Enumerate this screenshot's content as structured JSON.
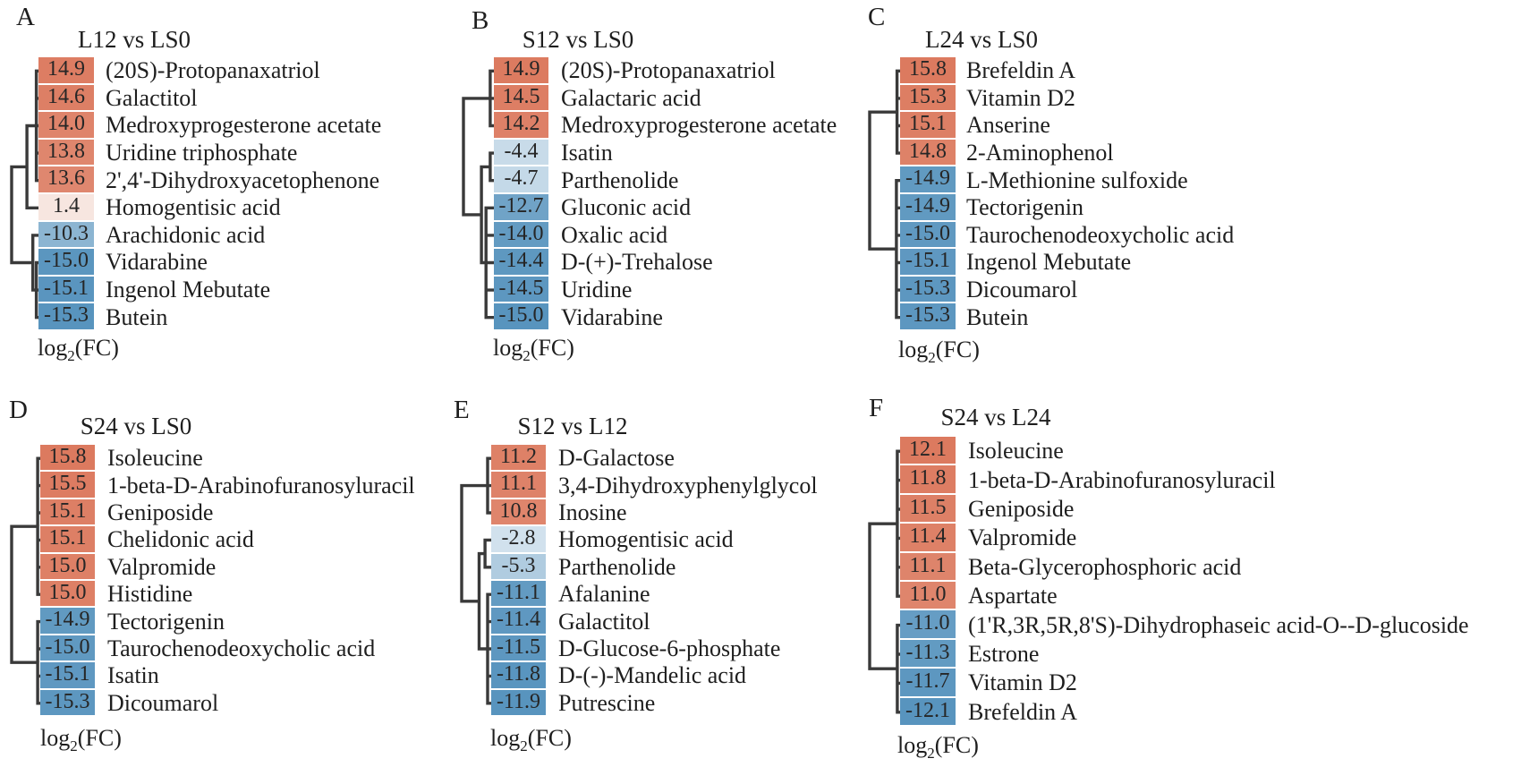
{
  "figure": {
    "background": "#ffffff",
    "value_label": "log2(FC)",
    "value_label_parts": {
      "base": "log",
      "sub": "2",
      "rest": "(FC)"
    },
    "colors": {
      "positive_end": "#dc7a5f",
      "positive_zero": "#faf1ed",
      "negative_end": "#5894be",
      "negative_zero": "#f6f9fb",
      "dendrogram": "#3a3a3a",
      "text": "#1e1e1e",
      "background": "#ffffff"
    }
  },
  "chart_data": [
    {
      "panel_label": "A",
      "title": "L12 vs LS0",
      "type": "heatmap",
      "value_label": "log2(FC)",
      "categories": [
        "(20S)-Protopanaxatriol",
        "Galactitol",
        "Medroxyprogesterone acetate",
        "Uridine triphosphate",
        "2',4'-Dihydroxyacetophenone",
        "Homogentisic acid",
        "Arachidonic acid",
        "Vidarabine",
        "Ingenol Mebutate",
        "Butein"
      ],
      "values": [
        14.9,
        14.6,
        14.0,
        13.8,
        13.6,
        1.4,
        -10.3,
        -15.0,
        -15.1,
        -15.3
      ],
      "dendrogram": {
        "h": 1.0,
        "children": [
          {
            "h": 0.43,
            "children": [
              {
                "h": 0.08,
                "children": [
                  0,
                  1,
                  2,
                  3,
                  4
                ]
              },
              5
            ]
          },
          {
            "h": 0.21,
            "children": [
              6,
              {
                "h": 0.08,
                "children": [
                  7,
                  8,
                  9
                ]
              }
            ]
          }
        ]
      }
    },
    {
      "panel_label": "B",
      "title": "S12 vs LS0",
      "type": "heatmap",
      "value_label": "log2(FC)",
      "categories": [
        "(20S)-Protopanaxatriol",
        "Galactaric acid",
        "Medroxyprogesterone acetate",
        "Isatin",
        "Parthenolide",
        "Gluconic acid",
        "Oxalic acid",
        "D-(+)-Trehalose",
        "Uridine",
        "Vidarabine"
      ],
      "values": [
        14.9,
        14.5,
        14.2,
        -4.4,
        -4.7,
        -12.7,
        -14.0,
        -14.4,
        -14.5,
        -15.0
      ],
      "dendrogram": {
        "h": 1.0,
        "children": [
          {
            "h": 0.12,
            "children": [
              0,
              1,
              2
            ]
          },
          {
            "h": 0.41,
            "children": [
              {
                "h": 0.12,
                "children": [
                  3,
                  4
                ]
              },
              {
                "h": 0.26,
                "children": [
                  5,
                  6,
                  7,
                  8,
                  9
                ]
              }
            ]
          }
        ]
      }
    },
    {
      "panel_label": "C",
      "title": "L24 vs LS0",
      "type": "heatmap",
      "value_label": "log2(FC)",
      "categories": [
        "Brefeldin A",
        "Vitamin D2",
        "Anserine",
        "2-Aminophenol",
        "L-Methionine sulfoxide",
        "Tectorigenin",
        "Taurochenodeoxycholic acid",
        "Ingenol Mebutate",
        "Dicoumarol",
        "Butein"
      ],
      "values": [
        15.8,
        15.3,
        15.1,
        14.8,
        -14.9,
        -14.9,
        -15.0,
        -15.1,
        -15.3,
        -15.3
      ],
      "dendrogram": {
        "h": 1.0,
        "children": [
          {
            "h": 0.1,
            "children": [
              0,
              1,
              2,
              3
            ]
          },
          {
            "h": 0.12,
            "children": [
              4,
              5,
              6,
              7,
              8,
              9
            ]
          }
        ]
      }
    },
    {
      "panel_label": "D",
      "title": "S24 vs LS0",
      "type": "heatmap",
      "value_label": "log2(FC)",
      "categories": [
        "Isoleucine",
        "1-beta-D-Arabinofuranosyluracil",
        "Geniposide",
        "Chelidonic acid",
        "Valpromide",
        "Histidine",
        "Tectorigenin",
        "Taurochenodeoxycholic acid",
        "Isatin",
        "Dicoumarol"
      ],
      "values": [
        15.8,
        15.5,
        15.1,
        15.1,
        15.0,
        15.0,
        -14.9,
        -15.0,
        -15.1,
        -15.3
      ],
      "dendrogram": {
        "h": 1.0,
        "children": [
          {
            "h": 0.09,
            "children": [
              0,
              1,
              2,
              3,
              4,
              5
            ]
          },
          {
            "h": 0.09,
            "children": [
              6,
              7,
              8,
              9
            ]
          }
        ]
      }
    },
    {
      "panel_label": "E",
      "title": "S12 vs L12",
      "type": "heatmap",
      "value_label": "log2(FC)",
      "categories": [
        "D-Galactose",
        "3,4-Dihydroxyphenylglycol",
        "Inosine",
        "Homogentisic acid",
        "Parthenolide",
        "Afalanine",
        "Galactitol",
        "D-Glucose-6-phosphate",
        "D-(-)-Mandelic acid",
        "Putrescine"
      ],
      "values": [
        11.2,
        11.1,
        10.8,
        -2.8,
        -5.3,
        -11.1,
        -11.4,
        -11.5,
        -11.8,
        -11.9
      ],
      "dendrogram": {
        "h": 1.0,
        "children": [
          {
            "h": 0.12,
            "children": [
              0,
              1,
              2
            ]
          },
          {
            "h": 0.41,
            "children": [
              {
                "h": 0.21,
                "children": [
                  3,
                  4
                ]
              },
              {
                "h": 0.12,
                "children": [
                  5,
                  6,
                  7,
                  8,
                  9
                ]
              }
            ]
          }
        ]
      }
    },
    {
      "panel_label": "F",
      "title": "S24 vs L24",
      "type": "heatmap",
      "value_label": "log2(FC)",
      "categories": [
        "Isoleucine",
        "1-beta-D-Arabinofuranosyluracil",
        "Geniposide",
        "Valpromide",
        "Beta-Glycerophosphoric acid",
        "Aspartate",
        "(1'R,3R,5R,8'S)-Dihydrophaseic acid-O--D-glucoside",
        "Estrone",
        "Vitamin D2",
        "Brefeldin A"
      ],
      "values": [
        12.1,
        11.8,
        11.5,
        11.4,
        11.1,
        11.0,
        -11.0,
        -11.3,
        -11.7,
        -12.1
      ],
      "dendrogram": {
        "h": 1.0,
        "children": [
          {
            "h": 0.09,
            "children": [
              0,
              1,
              2,
              3,
              4,
              5
            ]
          },
          {
            "h": 0.09,
            "children": [
              6,
              7,
              8,
              9
            ]
          }
        ]
      }
    }
  ]
}
